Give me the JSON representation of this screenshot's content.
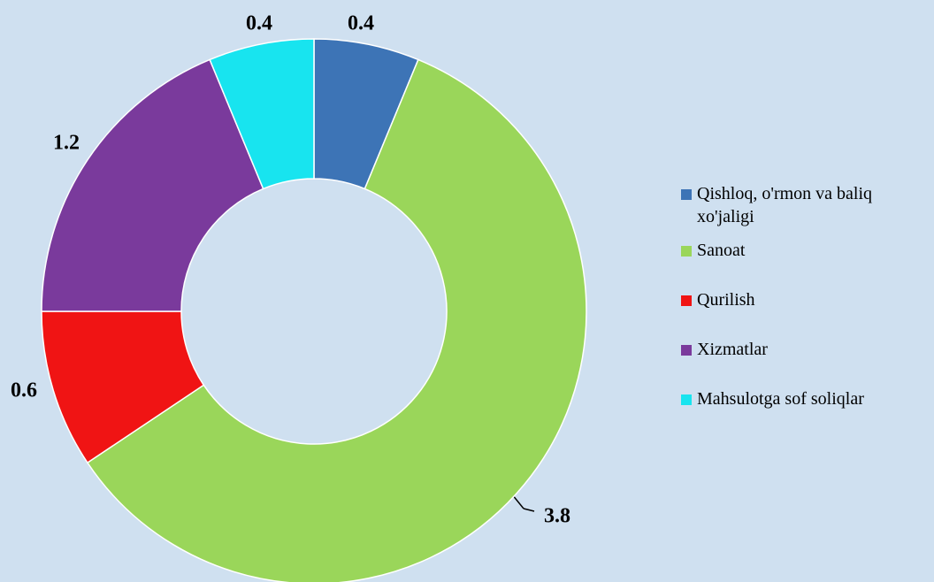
{
  "chart_data": {
    "type": "donut",
    "categories": [
      "Qishloq, o'rmon va baliq xo'jaligi",
      "Sanoat",
      "Qurilish",
      "Xizmatlar",
      "Mahsulotga sof soliqlar"
    ],
    "values": [
      0.4,
      3.8,
      0.6,
      1.2,
      0.4
    ],
    "colors": [
      "#3d74b6",
      "#9ad65a",
      "#f01414",
      "#7a3a9c",
      "#18e4ef"
    ],
    "legend": "right"
  }
}
